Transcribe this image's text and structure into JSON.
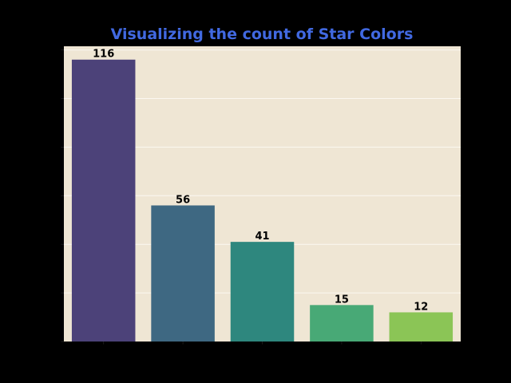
{
  "colors": {
    "figure_background": "#000000",
    "plot_background": "#efe6d4",
    "grid": "#fbf8f1",
    "title": "#4169e1",
    "data_label": "#000000",
    "tick": "#222222"
  },
  "chart_data": {
    "type": "bar",
    "title": "Visualizing the count of Star Colors",
    "xlabel": "",
    "ylabel": "",
    "categories": [
      "",
      "",
      "",
      "",
      ""
    ],
    "values": [
      116,
      56,
      41,
      15,
      12
    ],
    "bar_colors": [
      "#4c4279",
      "#3e6882",
      "#2e877e",
      "#48a976",
      "#8bc556"
    ],
    "ylim": [
      0,
      121.5
    ],
    "yticks": [
      0,
      20,
      40,
      60,
      80,
      100,
      120
    ],
    "grid": true,
    "legend": "none"
  }
}
